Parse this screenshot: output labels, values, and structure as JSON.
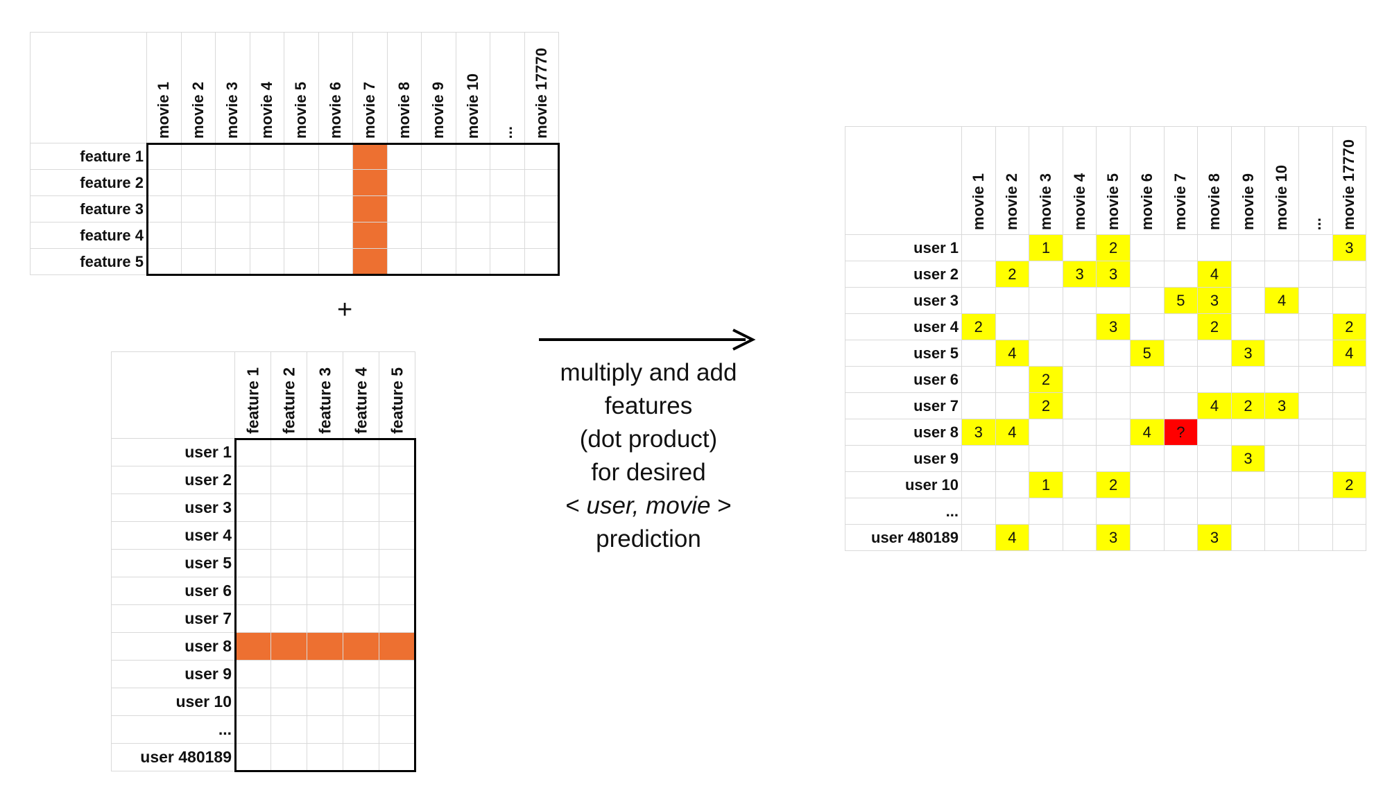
{
  "movie_feature_grid": {
    "columns": [
      "movie 1",
      "movie 2",
      "movie 3",
      "movie 4",
      "movie 5",
      "movie 6",
      "movie 7",
      "movie 8",
      "movie 9",
      "movie 10",
      "...",
      "movie 17770"
    ],
    "rows": [
      "feature 1",
      "feature 2",
      "feature 3",
      "feature 4",
      "feature 5"
    ],
    "highlight_column": "movie 7",
    "highlight_color": "#ED7031"
  },
  "plus_symbol": "+",
  "user_feature_grid": {
    "columns": [
      "feature 1",
      "feature 2",
      "feature 3",
      "feature 4",
      "feature 5"
    ],
    "rows": [
      "user 1",
      "user 2",
      "user 3",
      "user 4",
      "user 5",
      "user 6",
      "user 7",
      "user 8",
      "user 9",
      "user 10",
      "...",
      "user 480189"
    ],
    "highlight_row": "user 8",
    "highlight_color": "#ED7031"
  },
  "caption": {
    "line1": "multiply and add",
    "line2": "features",
    "line3": "(dot product)",
    "line4": "for desired",
    "line5_open": "< ",
    "line5_italic": "user, movie",
    "line5_close": " >",
    "line6": "prediction"
  },
  "ratings_matrix": {
    "columns": [
      "movie 1",
      "movie 2",
      "movie 3",
      "movie 4",
      "movie 5",
      "movie 6",
      "movie 7",
      "movie 8",
      "movie 9",
      "movie 10",
      "...",
      "movie 17770"
    ],
    "rows": [
      {
        "label": "user 1",
        "cells": [
          "",
          "",
          "1",
          "",
          "2",
          "",
          "",
          "",
          "",
          "",
          "",
          "3"
        ]
      },
      {
        "label": "user 2",
        "cells": [
          "",
          "2",
          "",
          "3",
          "3",
          "",
          "",
          "4",
          "",
          "",
          "",
          ""
        ]
      },
      {
        "label": "user 3",
        "cells": [
          "",
          "",
          "",
          "",
          "",
          "",
          "5",
          "3",
          "",
          "4",
          "",
          ""
        ]
      },
      {
        "label": "user 4",
        "cells": [
          "2",
          "",
          "",
          "",
          "3",
          "",
          "",
          "2",
          "",
          "",
          "",
          "2"
        ]
      },
      {
        "label": "user 5",
        "cells": [
          "",
          "4",
          "",
          "",
          "",
          "5",
          "",
          "",
          "3",
          "",
          "",
          "4"
        ]
      },
      {
        "label": "user 6",
        "cells": [
          "",
          "",
          "2",
          "",
          "",
          "",
          "",
          "",
          "",
          "",
          "",
          ""
        ]
      },
      {
        "label": "user 7",
        "cells": [
          "",
          "",
          "2",
          "",
          "",
          "",
          "",
          "4",
          "2",
          "3",
          "",
          ""
        ]
      },
      {
        "label": "user 8",
        "cells": [
          "3",
          "4",
          "",
          "",
          "",
          "4",
          "?",
          "",
          "",
          "",
          "",
          ""
        ]
      },
      {
        "label": "user 9",
        "cells": [
          "",
          "",
          "",
          "",
          "",
          "",
          "",
          "",
          "3",
          "",
          "",
          ""
        ]
      },
      {
        "label": "user 10",
        "cells": [
          "",
          "",
          "1",
          "",
          "2",
          "",
          "",
          "",
          "",
          "",
          "",
          "2"
        ]
      },
      {
        "label": "...",
        "cells": [
          "",
          "",
          "",
          "",
          "",
          "",
          "",
          "",
          "",
          "",
          "",
          ""
        ]
      },
      {
        "label": "user 480189",
        "cells": [
          "",
          "4",
          "",
          "",
          "3",
          "",
          "",
          "3",
          "",
          "",
          "",
          ""
        ]
      }
    ],
    "rating_color": "#FFFF00",
    "query_cell": {
      "row": "user 8",
      "column": "movie 7",
      "color": "#FF0000"
    }
  }
}
